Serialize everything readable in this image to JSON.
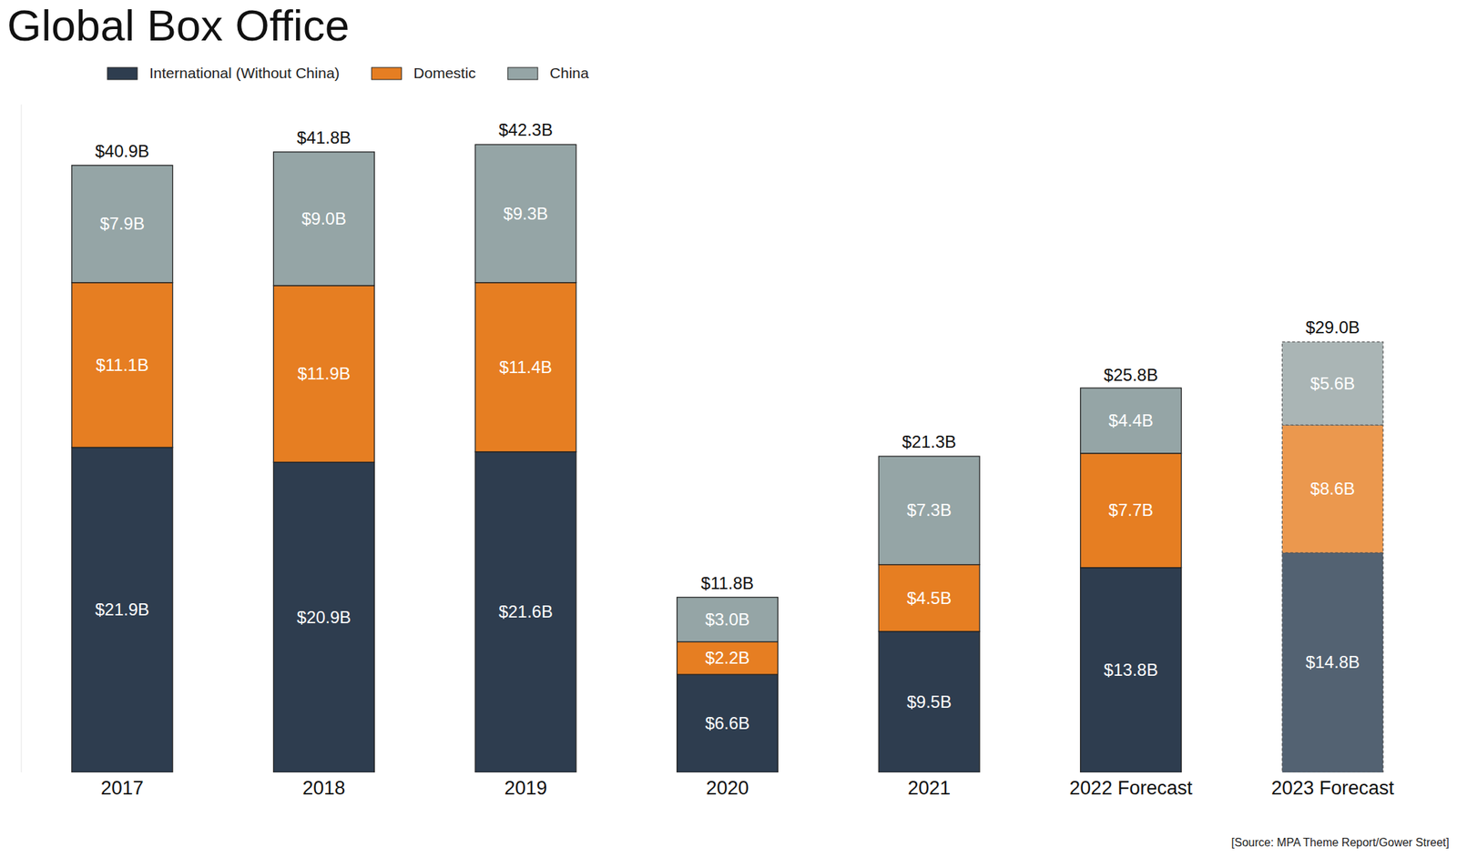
{
  "chart_data": {
    "type": "bar",
    "title": "Global Box Office",
    "source": "[Source: MPA Theme Report/Gower Street]",
    "categories": [
      "2017",
      "2018",
      "2019",
      "2020",
      "2021",
      "2022 Forecast",
      "2023 Forecast"
    ],
    "stacked": true,
    "data_labels": true,
    "tick_labels": "x",
    "legend": "top-left",
    "grid": false,
    "ylim": [
      0,
      45
    ],
    "yticks": [],
    "totals": [
      40.9,
      41.8,
      42.3,
      11.8,
      21.3,
      25.8,
      29.0
    ],
    "total_labels": [
      "$40.9B",
      "$41.8B",
      "$42.3B",
      "$11.8B",
      "$21.3B",
      "$25.8B",
      "$29.0B"
    ],
    "series": [
      {
        "name": "International (Without China)",
        "color": "#2e3d4f",
        "colors": [
          "#2e3d4f",
          "#2e3d4f",
          "#2e3d4f",
          "#2e3d4f",
          "#2e3d4f",
          "#2e3d4f",
          "#536272"
        ],
        "values": [
          21.9,
          20.9,
          21.6,
          6.6,
          9.5,
          13.8,
          14.8
        ],
        "value_labels": [
          "$21.9B",
          "$20.9B",
          "$21.6B",
          "$6.6B",
          "$9.5B",
          "$13.8B",
          "$14.8B"
        ]
      },
      {
        "name": "Domestic",
        "color": "#e67e22",
        "colors": [
          "#e67e22",
          "#e67e22",
          "#e67e22",
          "#e67e22",
          "#e67e22",
          "#e67e22",
          "#eb984e"
        ],
        "values": [
          11.1,
          11.9,
          11.4,
          2.2,
          4.5,
          7.7,
          8.6
        ],
        "value_labels": [
          "$11.1B",
          "$11.9B",
          "$11.4B",
          "$2.2B",
          "$4.5B",
          "$7.7B",
          "$8.6B"
        ]
      },
      {
        "name": "China",
        "color": "#95a5a6",
        "colors": [
          "#95a5a6",
          "#95a5a6",
          "#95a5a6",
          "#95a5a6",
          "#95a5a6",
          "#95a5a6",
          "#aab5b5"
        ],
        "values": [
          7.9,
          9.0,
          9.3,
          3.0,
          7.3,
          4.4,
          5.6
        ],
        "value_labels": [
          "$7.9B",
          "$9.0B",
          "$9.3B",
          "$3.0B",
          "$7.3B",
          "$4.4B",
          "$5.6B"
        ]
      }
    ]
  }
}
